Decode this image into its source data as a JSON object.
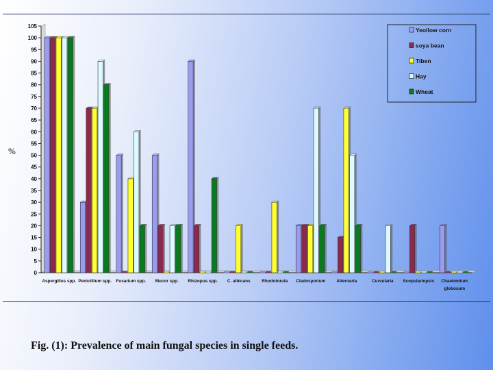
{
  "caption": "Fig. (1): Prevalence of main fungal species in single feeds.",
  "chart_data": {
    "type": "bar",
    "title": "",
    "xlabel": "",
    "ylabel": "%",
    "ylim": [
      0,
      105
    ],
    "yticks": [
      0,
      5,
      10,
      15,
      20,
      25,
      30,
      35,
      40,
      45,
      50,
      55,
      60,
      65,
      70,
      75,
      80,
      85,
      90,
      95,
      100,
      105
    ],
    "grid": false,
    "legend_position": "top-right",
    "categories": [
      "Aspergillus spp.",
      "Penicillium spp.",
      "Fusarium spp.",
      "Mucor spp.",
      "Rhizopus spp.",
      "C. albicans",
      "Rhodotorula",
      "Cladosporium",
      "Alternaria",
      "Curvularia",
      "Scopulariopsis",
      [
        "Chaetomium",
        "globosum"
      ]
    ],
    "series": [
      {
        "name": "Yeollow corn",
        "color": "#9a9cf0",
        "values": [
          100,
          30,
          50,
          50,
          90,
          0,
          0,
          20,
          0,
          0,
          0,
          20
        ]
      },
      {
        "name": "soya bean",
        "color": "#8a2a4e",
        "values": [
          100,
          70,
          0,
          20,
          20,
          0,
          0,
          20,
          15,
          0,
          20,
          0
        ]
      },
      {
        "name": "Tiben",
        "color": "#ffff33",
        "values": [
          100,
          70,
          40,
          0,
          0,
          20,
          30,
          20,
          70,
          0,
          0,
          0
        ]
      },
      {
        "name": "Hay",
        "color": "#dcfaff",
        "values": [
          100,
          90,
          60,
          20,
          0,
          0,
          0,
          70,
          50,
          20,
          0,
          0
        ]
      },
      {
        "name": "Wheat",
        "color": "#0a7a1e",
        "values": [
          100,
          80,
          20,
          20,
          40,
          0,
          0,
          20,
          20,
          0,
          0,
          0
        ]
      }
    ]
  }
}
